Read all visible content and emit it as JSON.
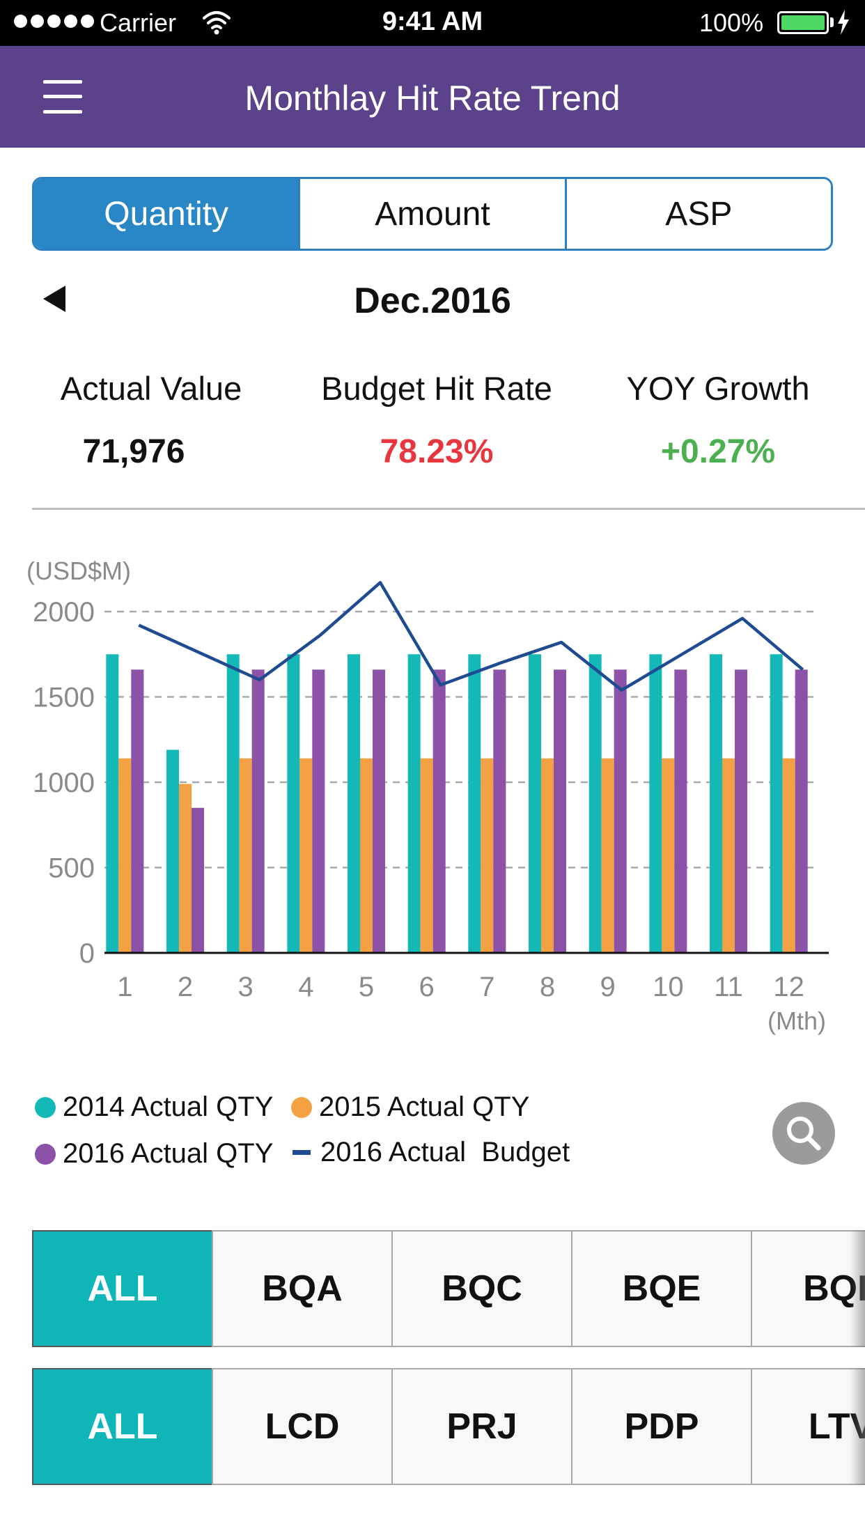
{
  "status_bar": {
    "carrier": "Carrier",
    "time": "9:41 AM",
    "battery": "100%"
  },
  "header": {
    "title": "Monthlay Hit Rate Trend",
    "menu_icon": "hamburger-menu-icon"
  },
  "tabs": [
    {
      "label": "Quantity",
      "active": true
    },
    {
      "label": "Amount",
      "active": false
    },
    {
      "label": "ASP",
      "active": false
    }
  ],
  "period": {
    "label": "Dec.2016",
    "prev_icon": "triangle-left-icon"
  },
  "metrics": [
    {
      "label": "Actual Value",
      "value": "71,976",
      "color": "#111111"
    },
    {
      "label": "Budget Hit Rate",
      "value": "78.23%",
      "color": "#e8363f"
    },
    {
      "label": "YOY Growth",
      "value": "+0.27%",
      "color": "#4caf50"
    }
  ],
  "chart_data": {
    "type": "bar",
    "unit_label": "(USD$M)",
    "xlabel": "(Mth)",
    "categories": [
      "1",
      "2",
      "3",
      "4",
      "5",
      "6",
      "7",
      "8",
      "9",
      "10",
      "11",
      "12"
    ],
    "yticks": [
      "0",
      "500",
      "1000",
      "1500",
      "2000"
    ],
    "ylim": [
      0,
      2000
    ],
    "grid": true,
    "series": [
      {
        "name": "2014 Actual QTY",
        "type": "bar",
        "color": "#13b8b7",
        "values": [
          1750,
          1190,
          1750,
          1750,
          1750,
          1750,
          1750,
          1750,
          1750,
          1750,
          1750,
          1750
        ]
      },
      {
        "name": "2015 Actual QTY",
        "type": "bar",
        "color": "#f4a144",
        "values": [
          1140,
          990,
          1140,
          1140,
          1140,
          1140,
          1140,
          1140,
          1140,
          1140,
          1140,
          1140
        ]
      },
      {
        "name": "2016 Actual QTY",
        "type": "bar",
        "color": "#8b52a8",
        "values": [
          1660,
          850,
          1660,
          1660,
          1660,
          1660,
          1660,
          1660,
          1660,
          1660,
          1660,
          1660
        ]
      },
      {
        "name": "2016 Actual  Budget",
        "type": "line",
        "color": "#1f4b91",
        "values": [
          1920,
          1760,
          1600,
          1860,
          2170,
          1570,
          1700,
          1820,
          1540,
          1750,
          1960,
          1660
        ]
      }
    ]
  },
  "legend": [
    {
      "label": "2014 Actual QTY",
      "color": "#13b8b7",
      "shape": "dot"
    },
    {
      "label": "2015 Actual QTY",
      "color": "#f4a144",
      "shape": "dot"
    },
    {
      "label": "2016 Actual QTY",
      "color": "#8b52a8",
      "shape": "dot"
    },
    {
      "label": "2016 Actual  Budget",
      "color": "#1f4b91",
      "shape": "line"
    }
  ],
  "search_button": {
    "icon": "search-icon"
  },
  "filters": {
    "regions": [
      "ALL",
      "BQA",
      "BQC",
      "BQE",
      "BQL"
    ],
    "products": [
      "ALL",
      "LCD",
      "PRJ",
      "PDP",
      "LTV"
    ]
  },
  "colors": {
    "nav": "#5b428a",
    "tab_active": "#2a87c5",
    "chip_active": "#10b5b8"
  }
}
